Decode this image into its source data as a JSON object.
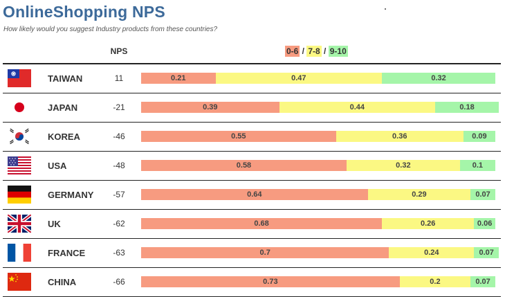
{
  "title": "OnlineShopping NPS",
  "subtitle": "How likely would you suggest Industry products from these countries?",
  "header": {
    "nps_label": "NPS"
  },
  "legend": {
    "items": [
      "0-6",
      "7-8",
      "9-10"
    ],
    "separator": " / "
  },
  "colors": {
    "detractor": "#f79b80",
    "passive": "#fbf883",
    "promoter": "#a5f5a9",
    "title": "#3d6a9a"
  },
  "chart_data": {
    "type": "bar",
    "stacked": true,
    "orientation": "horizontal",
    "categories": [
      "TAIWAN",
      "JAPAN",
      "KOREA",
      "USA",
      "GERMANY",
      "UK",
      "FRANCE",
      "CHINA"
    ],
    "nps": [
      11,
      -21,
      -46,
      -48,
      -57,
      -62,
      -63,
      -66
    ],
    "series": [
      {
        "name": "0-6",
        "values": [
          0.21,
          0.39,
          0.55,
          0.58,
          0.64,
          0.68,
          0.7,
          0.73
        ]
      },
      {
        "name": "7-8",
        "values": [
          0.47,
          0.44,
          0.36,
          0.32,
          0.29,
          0.26,
          0.24,
          0.2
        ]
      },
      {
        "name": "9-10",
        "values": [
          0.32,
          0.18,
          0.09,
          0.1,
          0.07,
          0.06,
          0.07,
          0.07
        ]
      }
    ],
    "flag_icons": [
      "taiwan-flag-icon",
      "japan-flag-icon",
      "korea-flag-icon",
      "usa-flag-icon",
      "germany-flag-icon",
      "uk-flag-icon",
      "france-flag-icon",
      "china-flag-icon"
    ]
  }
}
